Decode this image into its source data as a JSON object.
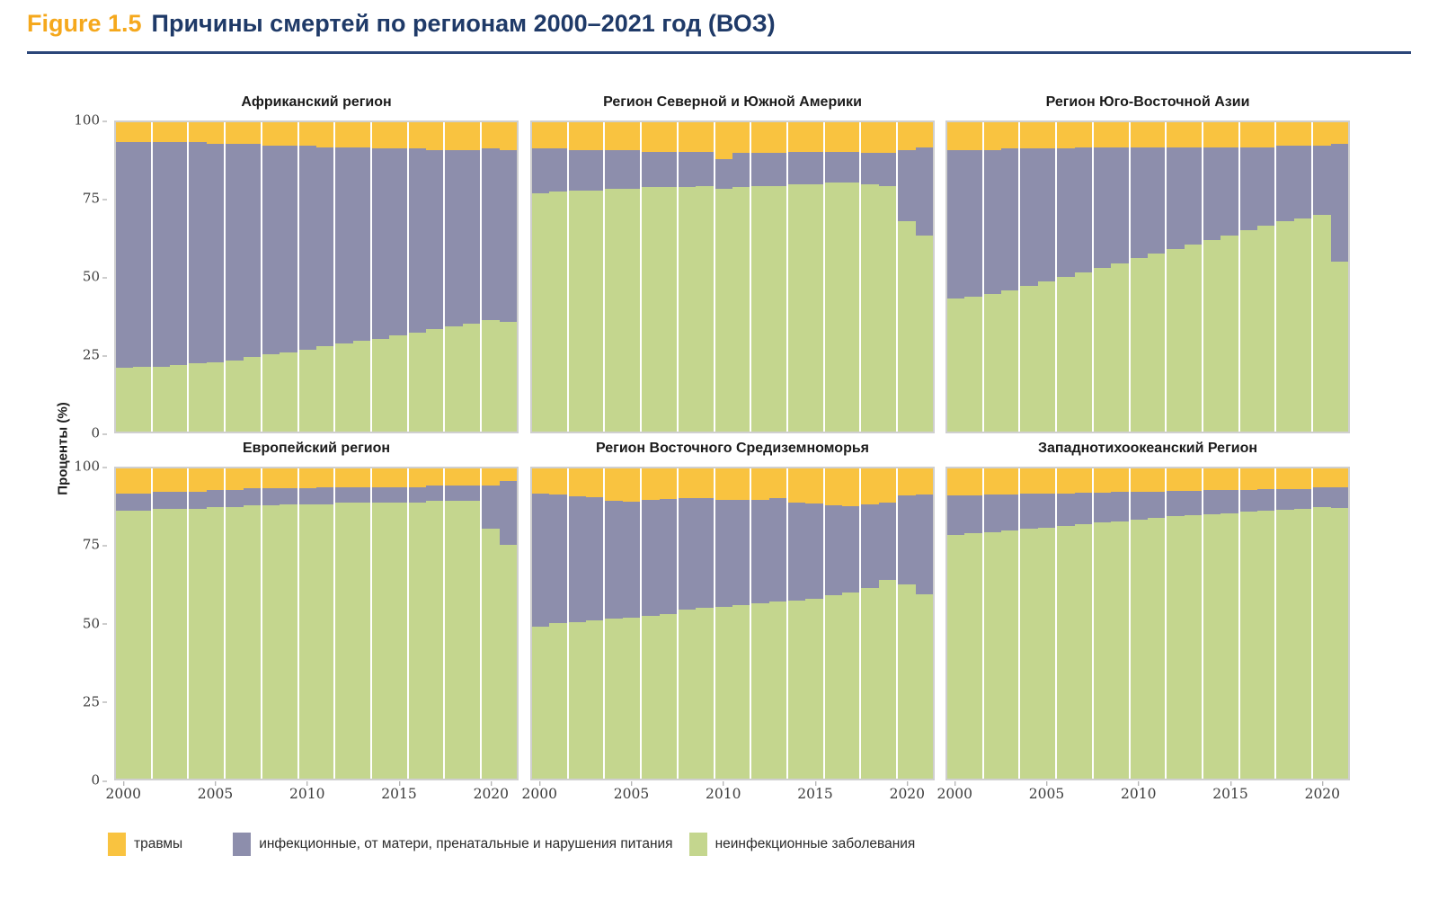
{
  "header": {
    "figure_label": "Figure 1.5",
    "title": "Причины смертей по регионам 2000–2021 год (ВОЗ)",
    "accent_color": "#F5A81C",
    "title_color": "#1F3A68"
  },
  "axis": {
    "y_label": "Проценты (%)",
    "y_ticks": [
      100,
      75,
      50,
      25,
      0
    ],
    "x_ticks": [
      2000,
      2005,
      2010,
      2015,
      2020
    ]
  },
  "legend": [
    {
      "key": "injuries",
      "label": "травмы",
      "color": "#F9C340"
    },
    {
      "key": "infectious",
      "label": "инфекционные, от матери, пренатальные и нарушения питания",
      "color": "#8D8EAC"
    },
    {
      "key": "ncd",
      "label": "неинфекционные заболевания",
      "color": "#C4D68E"
    }
  ],
  "chart_data": {
    "type": "bar",
    "stacked": true,
    "unit": "percent",
    "ylim": [
      0,
      100
    ],
    "grid": false,
    "legend_position": "bottom",
    "colors": {
      "injuries": "#F9C340",
      "infectious": "#8D8EAC",
      "ncd": "#C4D68E"
    },
    "years": [
      2000,
      2001,
      2002,
      2003,
      2004,
      2005,
      2006,
      2007,
      2008,
      2009,
      2010,
      2011,
      2012,
      2013,
      2014,
      2015,
      2016,
      2017,
      2018,
      2019,
      2020,
      2021
    ],
    "charts": [
      {
        "title": "Африканский регион",
        "series": {
          "ncd": [
            20.5,
            21,
            21,
            21.5,
            22,
            22.5,
            23,
            24,
            25,
            25.5,
            26.5,
            27.5,
            28.5,
            29.5,
            30,
            31,
            32,
            33,
            34,
            35,
            36,
            35.5
          ],
          "infectious": [
            73,
            72.5,
            72.5,
            72,
            71.5,
            70.5,
            70,
            69,
            67.5,
            67,
            66,
            64.5,
            63.5,
            62.5,
            61.5,
            60.5,
            59.5,
            58,
            57,
            56,
            55.5,
            55.5
          ],
          "injuries": [
            6.5,
            6.5,
            6.5,
            6.5,
            6.5,
            7,
            7,
            7,
            7.5,
            7.5,
            7.5,
            8,
            8,
            8,
            8.5,
            8.5,
            8.5,
            9,
            9,
            9,
            8.5,
            9
          ]
        }
      },
      {
        "title": "Регион Северной и Южной Америки",
        "series": {
          "ncd": [
            77,
            77.5,
            78,
            78,
            78.5,
            78.5,
            79,
            79,
            79,
            79.5,
            78.5,
            79,
            79.5,
            79.5,
            80,
            80,
            80.5,
            80.5,
            80,
            79.5,
            68,
            63.5
          ],
          "infectious": [
            14.5,
            14,
            13,
            13,
            12.5,
            12.5,
            11.5,
            11.5,
            11.5,
            11,
            9.5,
            11,
            10.5,
            10.5,
            10.5,
            10.5,
            10,
            10,
            10,
            10.5,
            23,
            28.5
          ],
          "injuries": [
            8.5,
            8.5,
            9,
            9,
            9,
            9,
            9.5,
            9.5,
            9.5,
            9.5,
            12,
            10,
            10,
            10,
            9.5,
            9.5,
            9.5,
            9.5,
            10,
            10,
            9,
            8
          ]
        }
      },
      {
        "title": "Регион Юго-Восточной Азии",
        "series": {
          "ncd": [
            43,
            43.5,
            44.5,
            45.5,
            47,
            48.5,
            50,
            51.5,
            53,
            54.5,
            56,
            57.5,
            59,
            60.5,
            62,
            63.5,
            65,
            66.5,
            68,
            69,
            70,
            55
          ],
          "infectious": [
            48,
            47.5,
            46.5,
            46,
            44.5,
            43,
            41.5,
            40.5,
            39,
            37.5,
            36,
            34.5,
            33,
            31.5,
            30,
            28.5,
            27,
            25.5,
            24.5,
            23.5,
            22.5,
            38
          ],
          "injuries": [
            9,
            9,
            9,
            8.5,
            8.5,
            8.5,
            8.5,
            8,
            8,
            8,
            8,
            8,
            8,
            8,
            8,
            8,
            8,
            8,
            7.5,
            7.5,
            7.5,
            7
          ]
        }
      },
      {
        "title": "Европейский регион",
        "series": {
          "ncd": [
            86.5,
            86.5,
            87,
            87,
            87,
            87.5,
            87.5,
            88,
            88,
            88.5,
            88.5,
            88.5,
            89,
            89,
            89,
            89,
            89,
            89.5,
            89.5,
            89.5,
            80.5,
            75.5
          ],
          "infectious": [
            5.5,
            5.5,
            5.5,
            5.5,
            5.5,
            5.5,
            5.5,
            5.5,
            5.5,
            5,
            5,
            5.5,
            5,
            5,
            5,
            5,
            5,
            5,
            5,
            5,
            14,
            20.5
          ],
          "injuries": [
            8,
            8,
            7.5,
            7.5,
            7.5,
            7,
            7,
            6.5,
            6.5,
            6.5,
            6.5,
            6,
            6,
            6,
            6,
            6,
            6,
            5.5,
            5.5,
            5.5,
            5.5,
            4
          ]
        }
      },
      {
        "title": "Регион Восточного Средиземноморья",
        "series": {
          "ncd": [
            49,
            50,
            50.5,
            51,
            51.5,
            52,
            52.5,
            53,
            54.5,
            55,
            55.5,
            56,
            56.5,
            57,
            57.5,
            58,
            59,
            60,
            61.5,
            64,
            62.5,
            59.5
          ],
          "infectious": [
            43,
            41.5,
            40.5,
            39.8,
            38,
            37.3,
            37.5,
            37.2,
            36,
            35.3,
            34.5,
            33.8,
            33.5,
            33.3,
            31.5,
            30.6,
            29,
            27.7,
            26.8,
            25,
            28.8,
            32
          ],
          "injuries": [
            8,
            8.5,
            9,
            9.2,
            10.5,
            10.7,
            10,
            9.8,
            9.5,
            9.7,
            10,
            10.2,
            10,
            9.7,
            11,
            11.4,
            12,
            12.3,
            11.7,
            11,
            8.7,
            8.5
          ]
        }
      },
      {
        "title": "Западнотихоокеанский Регион",
        "series": {
          "ncd": [
            78.5,
            79,
            79.5,
            80,
            80.5,
            81,
            81.5,
            82,
            82.5,
            83,
            83.5,
            84,
            84.5,
            85,
            85.3,
            85.6,
            86,
            86.3,
            86.6,
            87,
            87.5,
            87.3
          ],
          "infectious": [
            12.8,
            12.4,
            12,
            11.6,
            11.3,
            10.9,
            10.5,
            10.1,
            9.8,
            9.4,
            9,
            8.6,
            8.2,
            7.8,
            7.6,
            7.4,
            7.1,
            6.9,
            6.7,
            6.4,
            6.3,
            6.7
          ],
          "injuries": [
            8.7,
            8.6,
            8.5,
            8.4,
            8.2,
            8.1,
            8,
            7.9,
            7.7,
            7.6,
            7.5,
            7.4,
            7.3,
            7.2,
            7.1,
            7,
            6.9,
            6.8,
            6.7,
            6.6,
            6.2,
            6
          ]
        }
      }
    ]
  }
}
